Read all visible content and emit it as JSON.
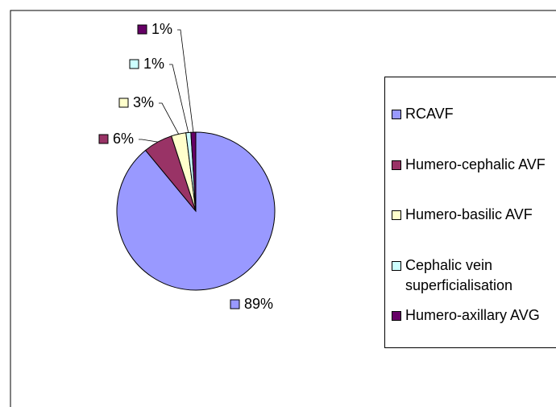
{
  "chart_data": {
    "type": "pie",
    "categories": [
      "RCAVF",
      "Humero-cephalic AVF",
      "Humero-basilic AVF",
      "Cephalic vein superficialisation",
      "Humero-axillary AVG"
    ],
    "values": [
      89,
      6,
      3,
      1,
      1
    ],
    "value_labels": [
      "89%",
      "6%",
      "3%",
      "1%",
      "1%"
    ],
    "colors": [
      "#9999ff",
      "#993366",
      "#ffffcc",
      "#ccffff",
      "#660066"
    ],
    "legend": "right"
  }
}
